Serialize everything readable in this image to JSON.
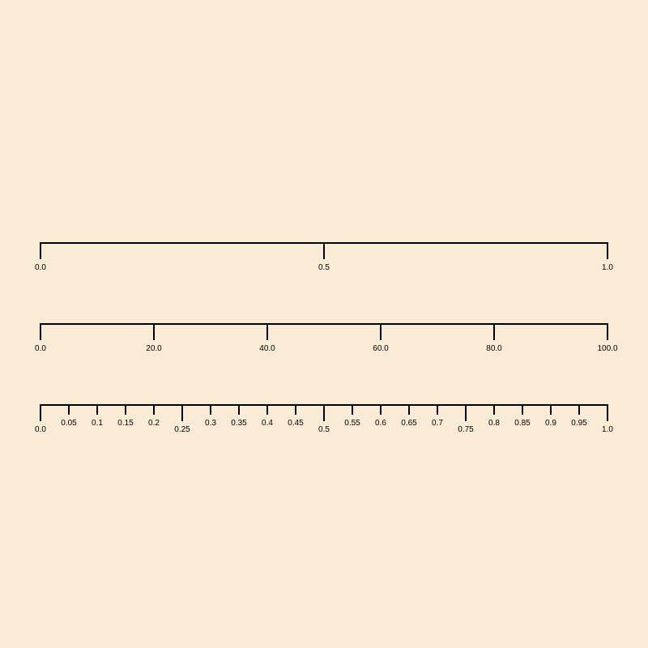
{
  "colors": {
    "background": "#faebd7",
    "stroke": "#000000"
  },
  "rulers": [
    {
      "name": "ruler-0-to-1-coarse",
      "range": [
        0,
        1
      ],
      "ticks": [
        {
          "value": 0,
          "label": "0.0",
          "major": true
        },
        {
          "value": 0.5,
          "label": "0.5",
          "major": true
        },
        {
          "value": 1,
          "label": "1.0",
          "major": true
        }
      ]
    },
    {
      "name": "ruler-0-to-100",
      "range": [
        0,
        100
      ],
      "ticks": [
        {
          "value": 0,
          "label": "0.0",
          "major": true
        },
        {
          "value": 20,
          "label": "20.0",
          "major": true
        },
        {
          "value": 40,
          "label": "40.0",
          "major": true
        },
        {
          "value": 60,
          "label": "60.0",
          "major": true
        },
        {
          "value": 80,
          "label": "80.0",
          "major": true
        },
        {
          "value": 100,
          "label": "100.0",
          "major": true
        }
      ]
    },
    {
      "name": "ruler-0-to-1-fine",
      "range": [
        0,
        1
      ],
      "ticks": [
        {
          "value": 0,
          "label": "0.0",
          "major": true
        },
        {
          "value": 0.05,
          "label": "0.05",
          "major": false
        },
        {
          "value": 0.1,
          "label": "0.1",
          "major": false
        },
        {
          "value": 0.15,
          "label": "0.15",
          "major": false
        },
        {
          "value": 0.2,
          "label": "0.2",
          "major": false
        },
        {
          "value": 0.25,
          "label": "0.25",
          "major": true
        },
        {
          "value": 0.3,
          "label": "0.3",
          "major": false
        },
        {
          "value": 0.35,
          "label": "0.35",
          "major": false
        },
        {
          "value": 0.4,
          "label": "0.4",
          "major": false
        },
        {
          "value": 0.45,
          "label": "0.45",
          "major": false
        },
        {
          "value": 0.5,
          "label": "0.5",
          "major": true
        },
        {
          "value": 0.55,
          "label": "0.55",
          "major": false
        },
        {
          "value": 0.6,
          "label": "0.6",
          "major": false
        },
        {
          "value": 0.65,
          "label": "0.65",
          "major": false
        },
        {
          "value": 0.7,
          "label": "0.7",
          "major": false
        },
        {
          "value": 0.75,
          "label": "0.75",
          "major": true
        },
        {
          "value": 0.8,
          "label": "0.8",
          "major": false
        },
        {
          "value": 0.85,
          "label": "0.85",
          "major": false
        },
        {
          "value": 0.9,
          "label": "0.9",
          "major": false
        },
        {
          "value": 0.95,
          "label": "0.95",
          "major": false
        },
        {
          "value": 1,
          "label": "1.0",
          "major": true
        }
      ]
    }
  ]
}
